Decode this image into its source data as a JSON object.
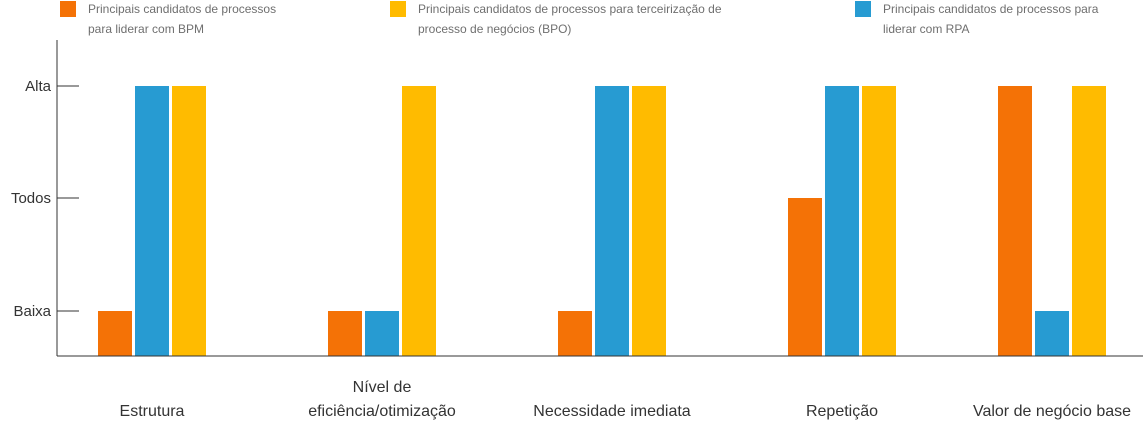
{
  "chart_data": {
    "type": "bar",
    "title": "",
    "xlabel": "",
    "ylabel": "",
    "categories": [
      [
        "Estrutura"
      ],
      [
        "Nível de",
        "eficiência/otimização"
      ],
      [
        "Necessidade imediata"
      ],
      [
        "Repetição"
      ],
      [
        "Valor de negócio base"
      ]
    ],
    "y_levels": [
      "Baixa",
      "Todos",
      "Alta"
    ],
    "ylim": [
      0,
      3
    ],
    "grid": false,
    "legend_position": "top",
    "series": [
      {
        "name": [
          "Principais candidatos de processos",
          "para liderar com BPM"
        ],
        "color": "#f47206",
        "values": [
          1,
          1,
          1,
          2,
          3
        ]
      },
      {
        "name": [
          "Principais candidatos de processos para",
          "liderar com RPA"
        ],
        "color": "#279bd2",
        "values": [
          3,
          1,
          3,
          3,
          1
        ]
      },
      {
        "name": [
          "Principais candidatos de processos para terceirização de",
          "processo de negócios (BPO)"
        ],
        "color": "#ffbb00",
        "values": [
          3,
          3,
          3,
          3,
          3
        ]
      }
    ],
    "legend_order": [
      0,
      2,
      1
    ]
  }
}
